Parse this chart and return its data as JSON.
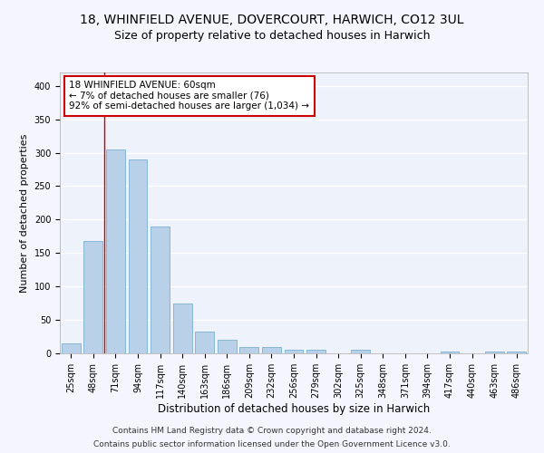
{
  "title1": "18, WHINFIELD AVENUE, DOVERCOURT, HARWICH, CO12 3UL",
  "title2": "Size of property relative to detached houses in Harwich",
  "xlabel": "Distribution of detached houses by size in Harwich",
  "ylabel": "Number of detached properties",
  "categories": [
    "25sqm",
    "48sqm",
    "71sqm",
    "94sqm",
    "117sqm",
    "140sqm",
    "163sqm",
    "186sqm",
    "209sqm",
    "232sqm",
    "256sqm",
    "279sqm",
    "302sqm",
    "325sqm",
    "348sqm",
    "371sqm",
    "394sqm",
    "417sqm",
    "440sqm",
    "463sqm",
    "486sqm"
  ],
  "values": [
    15,
    168,
    305,
    290,
    190,
    75,
    33,
    20,
    10,
    10,
    5,
    6,
    0,
    5,
    0,
    0,
    0,
    3,
    0,
    3,
    3
  ],
  "bar_color": "#b8d0e8",
  "bar_edge_color": "#7aafd4",
  "bar_width": 0.85,
  "ylim": [
    0,
    420
  ],
  "yticks": [
    0,
    50,
    100,
    150,
    200,
    250,
    300,
    350,
    400
  ],
  "red_line_x": 1.5,
  "annotation_title": "18 WHINFIELD AVENUE: 60sqm",
  "annotation_line1": "← 7% of detached houses are smaller (76)",
  "annotation_line2": "92% of semi-detached houses are larger (1,034) →",
  "annotation_box_color": "#ffffff",
  "annotation_box_edge": "#cc0000",
  "footer1": "Contains HM Land Registry data © Crown copyright and database right 2024.",
  "footer2": "Contains public sector information licensed under the Open Government Licence v3.0.",
  "bg_color": "#eef2fb",
  "grid_color": "#ffffff",
  "title1_fontsize": 10,
  "title2_fontsize": 9,
  "xlabel_fontsize": 8.5,
  "ylabel_fontsize": 8,
  "tick_fontsize": 7,
  "footer_fontsize": 6.5,
  "annotation_fontsize": 7.5
}
